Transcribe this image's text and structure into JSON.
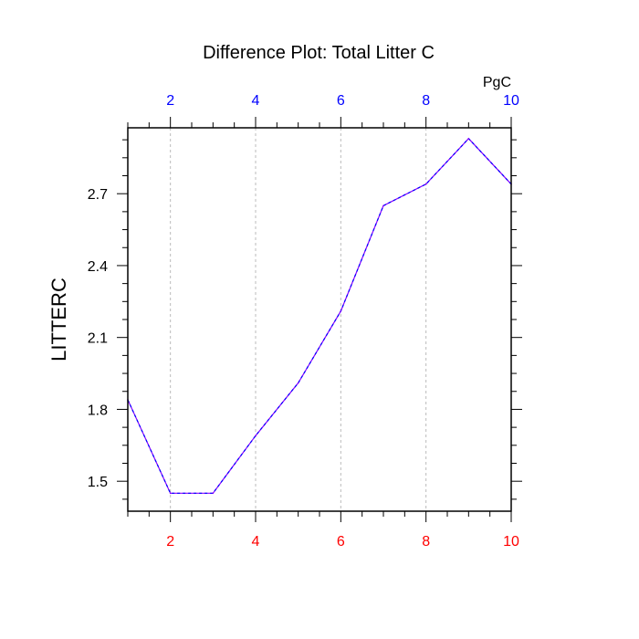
{
  "chart_data": {
    "type": "line",
    "title": "Difference Plot: Total Litter C",
    "ylabel": "LITTERC",
    "top_axis_unit": "PgC",
    "x": [
      1,
      2,
      3,
      4,
      5,
      6,
      7,
      8,
      9,
      10
    ],
    "series": [
      {
        "values": [
          1.84,
          1.45,
          1.45,
          1.69,
          1.91,
          2.21,
          2.65,
          2.74,
          2.93,
          2.74
        ],
        "color": "#8a00ff",
        "dash_color": "#0000ff",
        "style": "dashed"
      }
    ],
    "xlim": [
      1,
      10
    ],
    "ylim": [
      1.375,
      2.975
    ],
    "xticks_labeled": [
      2,
      4,
      6,
      8,
      10
    ],
    "xtick_labels": [
      "2",
      "4",
      "6",
      "8",
      "10"
    ],
    "yticks_labeled": [
      1.5,
      1.8,
      2.1,
      2.4,
      2.7
    ],
    "ytick_labels": [
      "1.5",
      "1.8",
      "2.1",
      "2.4",
      "2.7"
    ],
    "bottom_tick_color": "#ff0000",
    "top_tick_color": "#0000ff",
    "vertical_grid": true
  }
}
